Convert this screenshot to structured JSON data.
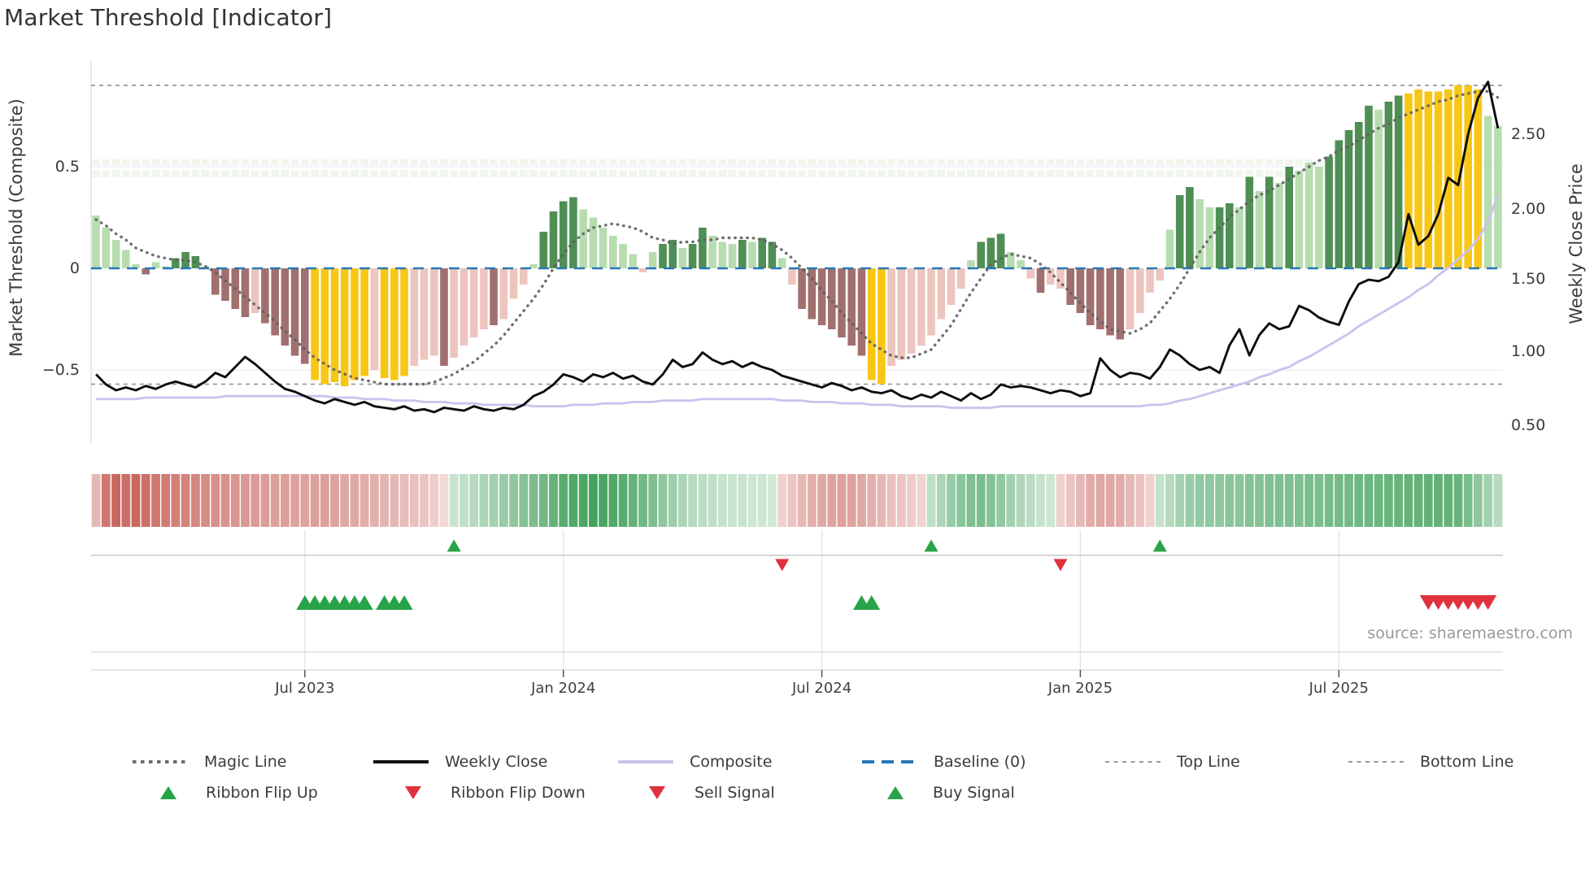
{
  "title": "Market Threshold [Indicator]",
  "source_note": "source: sharemaestro.com",
  "axes": {
    "left_label": "Market Threshold (Composite)",
    "right_label": "Weekly Close Price",
    "left_ticks": [
      "0.5",
      "0",
      "−0.5"
    ],
    "right_ticks": [
      "2.50",
      "2.00",
      "1.50",
      "1.00",
      "0.50"
    ],
    "x_ticks": [
      "Jul 2023",
      "Jan 2024",
      "Jul 2024",
      "Jan 2025",
      "Jul 2025"
    ]
  },
  "legend": {
    "row1": [
      {
        "label": "Magic Line",
        "style": "dotted",
        "color": "#6e6e6e"
      },
      {
        "label": "Weekly Close",
        "style": "solid",
        "color": "#111111"
      },
      {
        "label": "Composite",
        "style": "solid",
        "color": "#c9c2ee"
      },
      {
        "label": "Baseline (0)",
        "style": "dashed",
        "color": "#2878b8"
      },
      {
        "label": "Top Line",
        "style": "dashed-sm",
        "color": "#999999"
      },
      {
        "label": "Bottom Line",
        "style": "dashed-sm",
        "color": "#999999"
      }
    ],
    "row2": [
      {
        "label": "Ribbon Flip Up",
        "marker": "tri-up",
        "color": "#27a348"
      },
      {
        "label": "Ribbon Flip Down",
        "marker": "tri-down",
        "color": "#e0313f"
      },
      {
        "label": "Sell Signal",
        "marker": "tri-down",
        "color": "#e0313f"
      },
      {
        "label": "Buy Signal",
        "marker": "tri-up",
        "color": "#27a348"
      }
    ]
  },
  "palette": {
    "bar_light_green": "#b7dcb0",
    "bar_dark_green": "#4f8f55",
    "bar_pink": "#eec4bf",
    "bar_brown": "#a1706e",
    "bar_yellow": "#f8c615",
    "magic_line": "#5f5f5f",
    "weekly_close": "#0d0d0d",
    "composite": "#c9c2ee",
    "baseline": "#2878b8",
    "threshold_line": "#9a9a9a",
    "ribbon_red": "#c2544b",
    "ribbon_green": "#359a50",
    "signal_green": "#27a348",
    "signal_red": "#e0313f",
    "grid": "#e9e9f2"
  },
  "chart_data": {
    "type": "bar",
    "title": "Market Threshold [Indicator]",
    "x_axis": {
      "tick_labels": [
        "Jul 2023",
        "Jan 2024",
        "Jul 2024",
        "Jan 2025",
        "Jul 2025"
      ],
      "tick_weeks": [
        21,
        47,
        73,
        99,
        125
      ],
      "n_weeks": 142
    },
    "left_axis": {
      "label": "Market Threshold (Composite)",
      "ticks": [
        0.5,
        0,
        -0.5
      ],
      "range": [
        -0.78,
        1.02
      ]
    },
    "right_axis": {
      "label": "Weekly Close Price",
      "ticks": [
        2.5,
        2.0,
        1.5,
        1.0,
        0.5
      ],
      "range": [
        0.38,
        3.0
      ]
    },
    "baseline": 0,
    "top_line": 0.9,
    "bottom_line": -0.57,
    "grid": "horizontal-only",
    "legend_position": "bottom",
    "bars": {
      "name": "Market Threshold histogram",
      "values": [
        0.26,
        0.2,
        0.14,
        0.09,
        0.02,
        -0.03,
        0.03,
        0.01,
        0.05,
        0.08,
        0.06,
        0.01,
        -0.13,
        -0.16,
        -0.2,
        -0.24,
        -0.22,
        -0.27,
        -0.33,
        -0.38,
        -0.43,
        -0.47,
        -0.55,
        -0.57,
        -0.56,
        -0.58,
        -0.55,
        -0.53,
        -0.5,
        -0.54,
        -0.55,
        -0.53,
        -0.48,
        -0.45,
        -0.43,
        -0.48,
        -0.44,
        -0.38,
        -0.34,
        -0.3,
        -0.28,
        -0.25,
        -0.15,
        -0.08,
        0.02,
        0.18,
        0.28,
        0.33,
        0.35,
        0.29,
        0.25,
        0.2,
        0.16,
        0.12,
        0.07,
        -0.02,
        0.08,
        0.12,
        0.14,
        0.1,
        0.12,
        0.2,
        0.16,
        0.13,
        0.12,
        0.14,
        0.13,
        0.15,
        0.13,
        0.05,
        -0.08,
        -0.2,
        -0.25,
        -0.28,
        -0.3,
        -0.34,
        -0.38,
        -0.43,
        -0.55,
        -0.57,
        -0.48,
        -0.45,
        -0.42,
        -0.38,
        -0.33,
        -0.25,
        -0.18,
        -0.1,
        0.04,
        0.13,
        0.15,
        0.17,
        0.08,
        0.04,
        -0.05,
        -0.12,
        -0.08,
        -0.1,
        -0.18,
        -0.22,
        -0.28,
        -0.3,
        -0.33,
        -0.35,
        -0.3,
        -0.22,
        -0.12,
        -0.06,
        0.19,
        0.36,
        0.4,
        0.34,
        0.3,
        0.3,
        0.32,
        0.3,
        0.45,
        0.38,
        0.45,
        0.42,
        0.5,
        0.48,
        0.52,
        0.5,
        0.55,
        0.63,
        0.68,
        0.72,
        0.8,
        0.78,
        0.82,
        0.85,
        0.86,
        0.88,
        0.87,
        0.87,
        0.88,
        0.9,
        0.9,
        0.88,
        0.75,
        0.7
      ],
      "colors": [
        "lg",
        "lg",
        "lg",
        "lg",
        "lg",
        "b",
        "lg",
        "lg",
        "dg",
        "dg",
        "dg",
        "lg",
        "b",
        "b",
        "b",
        "b",
        "p",
        "b",
        "b",
        "b",
        "b",
        "b",
        "y",
        "y",
        "y",
        "y",
        "y",
        "y",
        "p",
        "y",
        "y",
        "y",
        "p",
        "p",
        "p",
        "b",
        "p",
        "p",
        "p",
        "p",
        "b",
        "p",
        "p",
        "p",
        "lg",
        "dg",
        "dg",
        "dg",
        "dg",
        "lg",
        "lg",
        "lg",
        "lg",
        "lg",
        "lg",
        "p",
        "lg",
        "dg",
        "dg",
        "lg",
        "dg",
        "dg",
        "lg",
        "lg",
        "lg",
        "dg",
        "lg",
        "dg",
        "dg",
        "lg",
        "p",
        "b",
        "b",
        "b",
        "b",
        "b",
        "b",
        "b",
        "y",
        "y",
        "p",
        "p",
        "p",
        "p",
        "p",
        "p",
        "p",
        "p",
        "lg",
        "dg",
        "dg",
        "dg",
        "lg",
        "lg",
        "p",
        "b",
        "p",
        "p",
        "b",
        "b",
        "b",
        "b",
        "b",
        "b",
        "p",
        "p",
        "p",
        "p",
        "lg",
        "dg",
        "dg",
        "lg",
        "lg",
        "dg",
        "dg",
        "lg",
        "dg",
        "lg",
        "dg",
        "lg",
        "dg",
        "lg",
        "lg",
        "lg",
        "dg",
        "dg",
        "dg",
        "dg",
        "dg",
        "lg",
        "dg",
        "dg",
        "y",
        "y",
        "y",
        "y",
        "y",
        "y",
        "y",
        "y",
        "lg",
        "lg"
      ]
    },
    "series": [
      {
        "name": "Magic Line",
        "axis": "left",
        "values": [
          0.24,
          0.21,
          0.17,
          0.14,
          0.1,
          0.08,
          0.06,
          0.05,
          0.04,
          0.04,
          0.03,
          0.01,
          -0.02,
          -0.06,
          -0.1,
          -0.14,
          -0.18,
          -0.22,
          -0.26,
          -0.31,
          -0.35,
          -0.4,
          -0.44,
          -0.47,
          -0.5,
          -0.52,
          -0.54,
          -0.55,
          -0.56,
          -0.57,
          -0.57,
          -0.57,
          -0.57,
          -0.57,
          -0.56,
          -0.54,
          -0.52,
          -0.49,
          -0.46,
          -0.42,
          -0.38,
          -0.33,
          -0.27,
          -0.21,
          -0.15,
          -0.08,
          0.0,
          0.07,
          0.13,
          0.17,
          0.2,
          0.21,
          0.22,
          0.21,
          0.2,
          0.18,
          0.15,
          0.14,
          0.12,
          0.13,
          0.13,
          0.14,
          0.14,
          0.15,
          0.15,
          0.15,
          0.15,
          0.14,
          0.12,
          0.09,
          0.05,
          0.0,
          -0.05,
          -0.11,
          -0.16,
          -0.22,
          -0.27,
          -0.32,
          -0.37,
          -0.4,
          -0.43,
          -0.44,
          -0.44,
          -0.42,
          -0.4,
          -0.34,
          -0.28,
          -0.2,
          -0.12,
          -0.05,
          0.02,
          0.05,
          0.07,
          0.06,
          0.05,
          0.02,
          -0.02,
          -0.07,
          -0.12,
          -0.17,
          -0.22,
          -0.26,
          -0.3,
          -0.31,
          -0.32,
          -0.3,
          -0.27,
          -0.21,
          -0.15,
          -0.08,
          0.0,
          0.08,
          0.15,
          0.2,
          0.25,
          0.29,
          0.33,
          0.36,
          0.38,
          0.41,
          0.44,
          0.47,
          0.5,
          0.53,
          0.55,
          0.58,
          0.6,
          0.63,
          0.66,
          0.69,
          0.71,
          0.74,
          0.76,
          0.78,
          0.8,
          0.82,
          0.83,
          0.85,
          0.86,
          0.87,
          0.87,
          0.84
        ]
      },
      {
        "name": "Weekly Close",
        "axis": "right",
        "values": [
          0.85,
          0.78,
          0.74,
          0.76,
          0.74,
          0.77,
          0.75,
          0.78,
          0.8,
          0.78,
          0.76,
          0.8,
          0.86,
          0.83,
          0.9,
          0.97,
          0.92,
          0.86,
          0.8,
          0.75,
          0.73,
          0.7,
          0.67,
          0.65,
          0.68,
          0.66,
          0.64,
          0.66,
          0.63,
          0.62,
          0.61,
          0.63,
          0.6,
          0.61,
          0.59,
          0.62,
          0.61,
          0.6,
          0.63,
          0.61,
          0.6,
          0.62,
          0.61,
          0.64,
          0.7,
          0.73,
          0.78,
          0.85,
          0.83,
          0.8,
          0.85,
          0.83,
          0.86,
          0.82,
          0.84,
          0.8,
          0.78,
          0.85,
          0.95,
          0.9,
          0.92,
          1.0,
          0.95,
          0.92,
          0.94,
          0.9,
          0.93,
          0.9,
          0.88,
          0.84,
          0.82,
          0.8,
          0.78,
          0.76,
          0.79,
          0.77,
          0.74,
          0.76,
          0.73,
          0.72,
          0.74,
          0.7,
          0.68,
          0.71,
          0.69,
          0.73,
          0.7,
          0.67,
          0.72,
          0.68,
          0.71,
          0.78,
          0.76,
          0.77,
          0.76,
          0.74,
          0.72,
          0.74,
          0.73,
          0.7,
          0.72,
          0.96,
          0.88,
          0.83,
          0.86,
          0.85,
          0.82,
          0.9,
          1.02,
          0.98,
          0.92,
          0.88,
          0.9,
          0.86,
          1.05,
          1.16,
          0.98,
          1.12,
          1.2,
          1.16,
          1.18,
          1.32,
          1.29,
          1.24,
          1.21,
          1.19,
          1.35,
          1.47,
          1.5,
          1.49,
          1.52,
          1.62,
          1.95,
          1.74,
          1.8,
          1.95,
          2.2,
          2.15,
          2.5,
          2.75,
          2.86,
          2.54
        ]
      },
      {
        "name": "Composite",
        "axis": "right",
        "values": [
          0.68,
          0.68,
          0.68,
          0.68,
          0.68,
          0.69,
          0.69,
          0.69,
          0.69,
          0.69,
          0.69,
          0.69,
          0.69,
          0.7,
          0.7,
          0.7,
          0.7,
          0.7,
          0.7,
          0.7,
          0.7,
          0.7,
          0.7,
          0.7,
          0.69,
          0.69,
          0.69,
          0.68,
          0.68,
          0.68,
          0.67,
          0.67,
          0.67,
          0.66,
          0.66,
          0.66,
          0.65,
          0.65,
          0.65,
          0.64,
          0.64,
          0.64,
          0.64,
          0.64,
          0.63,
          0.63,
          0.63,
          0.63,
          0.64,
          0.64,
          0.64,
          0.65,
          0.65,
          0.65,
          0.66,
          0.66,
          0.66,
          0.67,
          0.67,
          0.67,
          0.67,
          0.68,
          0.68,
          0.68,
          0.68,
          0.68,
          0.68,
          0.68,
          0.68,
          0.67,
          0.67,
          0.67,
          0.66,
          0.66,
          0.66,
          0.65,
          0.65,
          0.65,
          0.64,
          0.64,
          0.64,
          0.63,
          0.63,
          0.63,
          0.63,
          0.63,
          0.62,
          0.62,
          0.62,
          0.62,
          0.62,
          0.63,
          0.63,
          0.63,
          0.63,
          0.63,
          0.63,
          0.63,
          0.63,
          0.63,
          0.63,
          0.63,
          0.63,
          0.63,
          0.63,
          0.63,
          0.64,
          0.64,
          0.65,
          0.67,
          0.68,
          0.7,
          0.72,
          0.74,
          0.76,
          0.78,
          0.8,
          0.83,
          0.85,
          0.88,
          0.9,
          0.94,
          0.97,
          1.01,
          1.05,
          1.09,
          1.13,
          1.18,
          1.22,
          1.26,
          1.3,
          1.34,
          1.38,
          1.43,
          1.47,
          1.53,
          1.58,
          1.64,
          1.7,
          1.78,
          1.9,
          2.08
        ]
      }
    ],
    "ribbon": {
      "name": "trend ribbon (red negative / green positive intensity)",
      "values": [
        -0.35,
        -0.75,
        -0.85,
        -0.8,
        -0.85,
        -0.8,
        -0.75,
        -0.72,
        -0.7,
        -0.68,
        -0.65,
        -0.62,
        -0.6,
        -0.58,
        -0.56,
        -0.55,
        -0.53,
        -0.52,
        -0.5,
        -0.5,
        -0.48,
        -0.48,
        -0.5,
        -0.5,
        -0.48,
        -0.45,
        -0.45,
        -0.42,
        -0.4,
        -0.38,
        -0.35,
        -0.32,
        -0.3,
        -0.28,
        -0.22,
        -0.15,
        0.2,
        0.25,
        0.3,
        0.35,
        0.4,
        0.45,
        0.5,
        0.55,
        0.6,
        0.65,
        0.72,
        0.78,
        0.82,
        0.85,
        0.88,
        0.85,
        0.82,
        0.78,
        0.72,
        0.65,
        0.58,
        0.5,
        0.42,
        0.35,
        0.3,
        0.27,
        0.25,
        0.22,
        0.2,
        0.2,
        0.18,
        0.18,
        0.15,
        -0.2,
        -0.28,
        -0.35,
        -0.4,
        -0.45,
        -0.48,
        -0.5,
        -0.48,
        -0.45,
        -0.4,
        -0.35,
        -0.3,
        -0.27,
        -0.23,
        -0.18,
        0.25,
        0.35,
        0.45,
        0.52,
        0.58,
        0.6,
        0.55,
        0.48,
        0.4,
        0.33,
        0.28,
        0.22,
        0.18,
        -0.2,
        -0.28,
        -0.35,
        -0.42,
        -0.45,
        -0.45,
        -0.42,
        -0.35,
        -0.28,
        -0.2,
        0.22,
        0.3,
        0.38,
        0.45,
        0.48,
        0.5,
        0.5,
        0.52,
        0.52,
        0.55,
        0.55,
        0.57,
        0.57,
        0.58,
        0.58,
        0.6,
        0.6,
        0.62,
        0.63,
        0.65,
        0.67,
        0.68,
        0.68,
        0.7,
        0.7,
        0.72,
        0.72,
        0.73,
        0.73,
        0.72,
        0.7,
        0.6,
        0.5,
        0.4,
        0.3
      ]
    },
    "signals": {
      "ribbon_flip_up_weeks": [
        36,
        84,
        107
      ],
      "ribbon_flip_down_weeks": [
        69,
        97
      ],
      "buy_weeks": [
        21,
        22,
        23,
        24,
        25,
        26,
        27,
        29,
        30,
        31,
        77,
        78
      ],
      "sell_weeks": [
        134,
        135,
        136,
        137,
        138,
        139,
        140
      ]
    }
  }
}
